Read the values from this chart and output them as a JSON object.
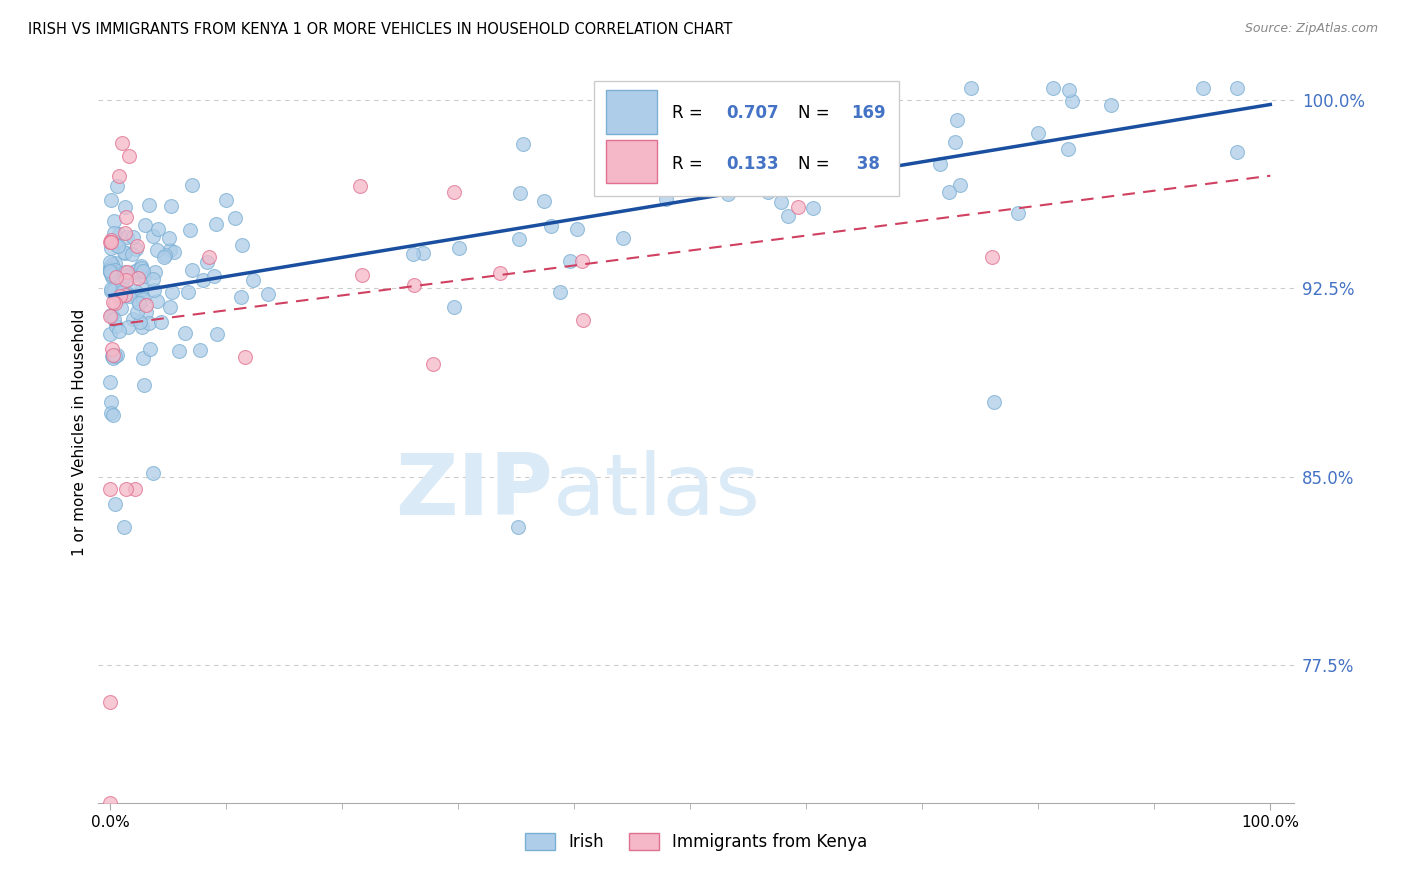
{
  "title": "IRISH VS IMMIGRANTS FROM KENYA 1 OR MORE VEHICLES IN HOUSEHOLD CORRELATION CHART",
  "source": "Source: ZipAtlas.com",
  "ylabel": "1 or more Vehicles in Household",
  "ytick_labels": [
    "77.5%",
    "85.0%",
    "92.5%",
    "100.0%"
  ],
  "ytick_values": [
    0.775,
    0.85,
    0.925,
    1.0
  ],
  "ylim": [
    0.72,
    1.015
  ],
  "xlim": [
    -0.01,
    1.02
  ],
  "irish_color": "#aecde8",
  "irish_edge_color": "#7aafd4",
  "kenya_color": "#f5b8c8",
  "kenya_edge_color": "#e07090",
  "irish_line_color": "#1a4fa0",
  "kenya_line_color": "#d04060",
  "R_irish": "0.707",
  "N_irish": "169",
  "R_kenya": "0.133",
  "N_kenya": " 38",
  "legend_label_irish": "Irish",
  "legend_label_kenya": "Immigrants from Kenya",
  "background_color": "#ffffff",
  "grid_color": "#cccccc",
  "watermark_color": "#daeaf7",
  "ytick_color": "#4472c4",
  "title_color": "#000000",
  "source_color": "#888888",
  "scatter_size": 100,
  "scatter_alpha": 0.75
}
